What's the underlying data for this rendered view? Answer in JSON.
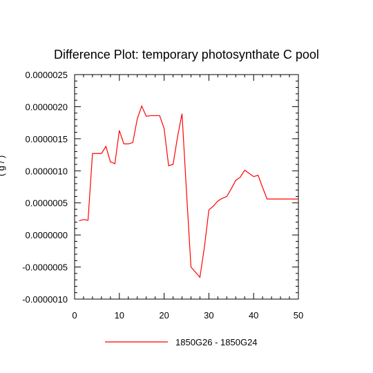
{
  "chart_data": {
    "type": "line",
    "title": "Difference Plot: temporary photosynthate C pool",
    "ylabel_partial": "( g / )",
    "xlim": [
      0,
      50
    ],
    "ylim": [
      -1e-06,
      2.5e-06
    ],
    "x_ticks": [
      0,
      10,
      20,
      30,
      40,
      50
    ],
    "x_tick_labels": [
      "0",
      "10",
      "20",
      "30",
      "40",
      "50"
    ],
    "y_ticks": [
      2.5e-06,
      2e-06,
      1.5e-06,
      1e-06,
      5e-07,
      0.0,
      -5e-07,
      -1e-06
    ],
    "y_tick_labels": [
      "0.0000025",
      "0.0000020",
      "0.0000015",
      "0.0000010",
      "0.0000005",
      "0.0000000",
      "-0.0000005",
      "-0.0000010"
    ],
    "legend_position": "bottom-center",
    "series": [
      {
        "name": "1850G26 - 1850G24",
        "color": "#ff0000",
        "x": [
          1,
          2,
          3,
          4,
          5,
          6,
          7,
          8,
          9,
          10,
          11,
          12,
          13,
          14,
          15,
          16,
          17,
          18,
          19,
          20,
          21,
          22,
          23,
          24,
          25,
          26,
          27,
          28,
          29,
          30,
          31,
          32,
          33,
          34,
          35,
          36,
          37,
          38,
          39,
          40,
          41,
          42,
          43,
          44,
          45,
          46,
          47,
          48,
          49,
          50
        ],
        "values": [
          2.2e-07,
          2.4e-07,
          2.3e-07,
          1.27e-06,
          1.27e-06,
          1.27e-06,
          1.38e-06,
          1.14e-06,
          1.11e-06,
          1.63e-06,
          1.42e-06,
          1.42e-06,
          1.44e-06,
          1.81e-06,
          2.01e-06,
          1.85e-06,
          1.86e-06,
          1.86e-06,
          1.86e-06,
          1.66e-06,
          1.08e-06,
          1.1e-06,
          1.53e-06,
          1.89e-06,
          6.7e-07,
          -5e-07,
          -5.8e-07,
          -6.6e-07,
          -1.9e-07,
          3.9e-07,
          4.5e-07,
          5.3e-07,
          5.7e-07,
          6e-07,
          7.2e-07,
          8.5e-07,
          9e-07,
          1.01e-06,
          9.6e-07,
          9.1e-07,
          9.3e-07,
          7.4e-07,
          5.6e-07,
          5.6e-07,
          5.6e-07,
          5.6e-07,
          5.6e-07,
          5.6e-07,
          5.6e-07,
          5.6e-07
        ]
      }
    ]
  }
}
